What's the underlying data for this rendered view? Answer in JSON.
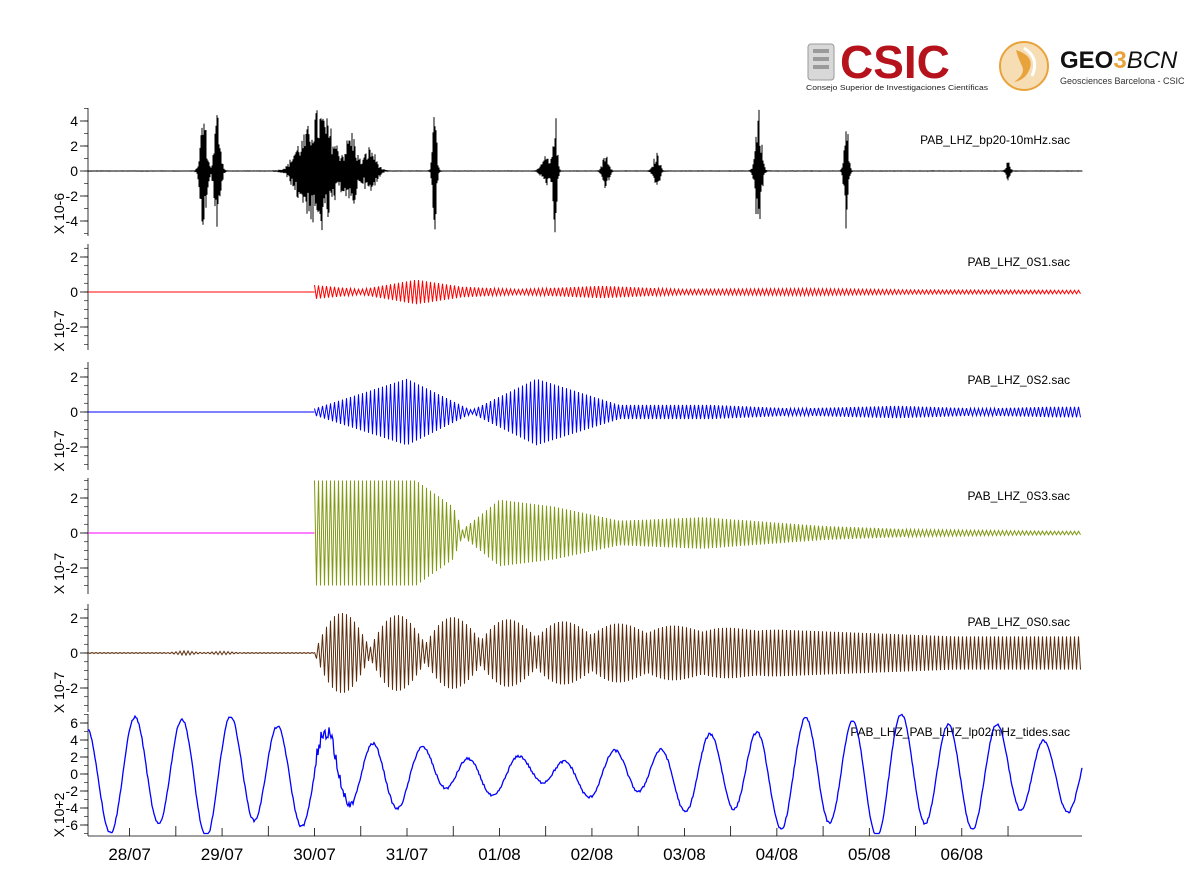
{
  "logos": {
    "csic": {
      "name": "CSIC",
      "subtitle": "Consejo Superior de Investigaciones Científicas",
      "color": "#b5121b"
    },
    "geo3bcn": {
      "name_left": "GEO",
      "name_mid": "3",
      "name_right": "BCN",
      "subtitle": "Geosciences Barcelona - CSIC",
      "accent": "#e8a33d"
    }
  },
  "chart_data": {
    "type": "line",
    "x_axis": {
      "ticks": [
        "28/07",
        "29/07",
        "30/07",
        "31/07",
        "01/08",
        "02/08",
        "03/08",
        "04/08",
        "05/08",
        "06/08"
      ]
    },
    "panels": [
      {
        "name": "PAB_LHZ_bp20-10mHz.sac",
        "color": "#000000",
        "scale_label": "X 10-6",
        "ylim": [
          -5,
          5
        ],
        "yticks": [
          "4",
          "2",
          "0",
          "-2",
          "-4"
        ],
        "ytick_values": [
          4,
          2,
          0,
          -2,
          -4
        ],
        "envelope_kind": "bursts",
        "bursts": [
          {
            "t": 0.8,
            "amp": 5,
            "w": 0.06
          },
          {
            "t": 0.95,
            "amp": 5,
            "w": 0.06
          },
          {
            "t": 1.8,
            "amp": 0.8,
            "w": 0.1
          },
          {
            "t": 2.05,
            "amp": 5,
            "w": 0.3
          },
          {
            "t": 2.4,
            "amp": 3,
            "w": 0.1
          },
          {
            "t": 2.6,
            "amp": 2,
            "w": 0.12
          },
          {
            "t": 3.3,
            "amp": 5,
            "w": 0.04
          },
          {
            "t": 4.5,
            "amp": 1.2,
            "w": 0.08
          },
          {
            "t": 4.6,
            "amp": 5,
            "w": 0.04
          },
          {
            "t": 5.15,
            "amp": 1.5,
            "w": 0.06
          },
          {
            "t": 5.7,
            "amp": 1.5,
            "w": 0.06
          },
          {
            "t": 6.8,
            "amp": 5,
            "w": 0.06
          },
          {
            "t": 7.75,
            "amp": 5,
            "w": 0.04
          },
          {
            "t": 9.5,
            "amp": 0.8,
            "w": 0.04
          }
        ]
      },
      {
        "name": "PAB_LHZ_0S1.sac",
        "color": "#ff0000",
        "scale_label": "X 10-7",
        "ylim": [
          -3,
          3
        ],
        "yticks": [
          "2",
          "0",
          "-2"
        ],
        "ytick_values": [
          2,
          0,
          -2
        ],
        "envelope_kind": "modulated",
        "onset": 2.0,
        "envelope": [
          [
            2.0,
            0.4
          ],
          [
            2.5,
            0.15
          ],
          [
            3.1,
            0.7
          ],
          [
            3.6,
            0.3
          ],
          [
            4.2,
            0.15
          ],
          [
            5.1,
            0.35
          ],
          [
            6.0,
            0.15
          ],
          [
            7.3,
            0.2
          ],
          [
            8.5,
            0.12
          ],
          [
            10.0,
            0.1
          ]
        ]
      },
      {
        "name": "PAB_LHZ_0S2.sac",
        "color": "#0000ff",
        "scale_label": "X 10-7",
        "ylim": [
          -3,
          3
        ],
        "yticks": [
          "2",
          "0",
          "-2"
        ],
        "ytick_values": [
          2,
          0,
          -2
        ],
        "envelope_kind": "modulated",
        "onset": 2.0,
        "envelope": [
          [
            2.0,
            0.2
          ],
          [
            3.0,
            1.9
          ],
          [
            3.7,
            0.1
          ],
          [
            4.4,
            1.9
          ],
          [
            5.3,
            0.4
          ],
          [
            6.3,
            0.4
          ],
          [
            7.2,
            0.2
          ],
          [
            8.3,
            0.35
          ],
          [
            9.2,
            0.2
          ],
          [
            10.0,
            0.3
          ]
        ]
      },
      {
        "name": "PAB_LHZ_0S3.sac",
        "color": "#7f9a12",
        "pre_color": "#ff00ff",
        "scale_label": "X 10-7",
        "ylim": [
          -3,
          3
        ],
        "yticks": [
          "2",
          "0",
          "-2"
        ],
        "ytick_values": [
          2,
          0,
          -2
        ],
        "envelope_kind": "modulated",
        "onset": 2.0,
        "envelope": [
          [
            2.0,
            3.0
          ],
          [
            3.1,
            3.0
          ],
          [
            3.5,
            1.5
          ],
          [
            3.6,
            0.2
          ],
          [
            4.0,
            1.9
          ],
          [
            4.6,
            1.5
          ],
          [
            5.3,
            0.7
          ],
          [
            6.2,
            0.9
          ],
          [
            7.5,
            0.4
          ],
          [
            8.5,
            0.2
          ],
          [
            10.0,
            0.1
          ]
        ]
      },
      {
        "name": "PAB_LHZ_0S0.sac",
        "color": "#5c2d0c",
        "scale_label": "X 10-7",
        "ylim": [
          -3,
          3
        ],
        "yticks": [
          "2",
          "0",
          "-2"
        ],
        "ytick_values": [
          2,
          0,
          -2
        ],
        "envelope_kind": "beats",
        "onset": 2.0,
        "pre_bumps": [
          [
            0.6,
            0.1
          ],
          [
            1.0,
            0.08
          ]
        ],
        "beat_period": 0.6,
        "beat_amp": 2.3,
        "beat_decay_to": 0.9
      },
      {
        "name": "PAB_LHZ_PAB_LHZ_lp02mHz_tides.sac",
        "color": "#0000ff",
        "scale_label": "X 10+2",
        "ylim": [
          -7,
          7
        ],
        "yticks": [
          "6",
          "4",
          "2",
          "0",
          "-2",
          "-4",
          "-6"
        ],
        "ytick_values": [
          6,
          4,
          2,
          0,
          -2,
          -4,
          -6
        ],
        "envelope_kind": "tides"
      }
    ]
  }
}
